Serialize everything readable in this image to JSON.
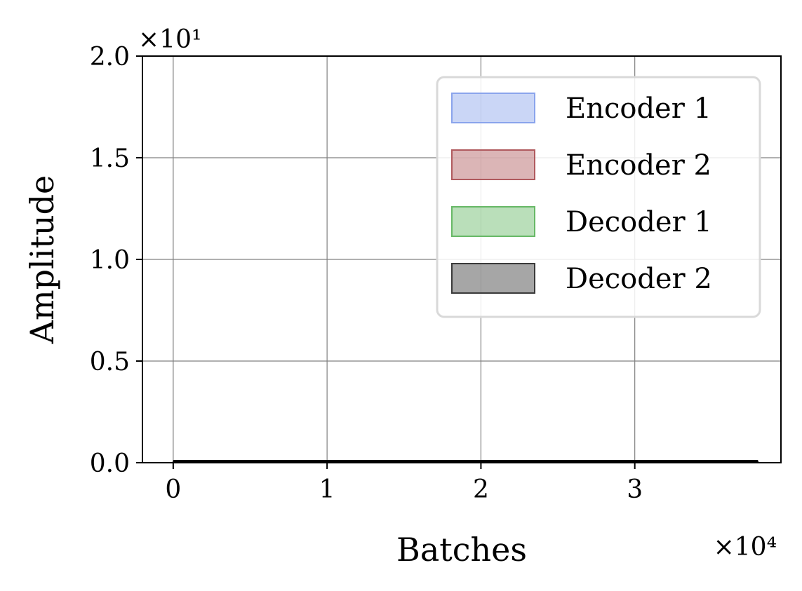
{
  "chart_data": {
    "type": "area",
    "title": "",
    "xlabel": "Batches",
    "ylabel": "Amplitude",
    "x_scale_label": "×10⁴",
    "y_scale_label": "×10¹",
    "xlim": [
      -0.2,
      3.95
    ],
    "ylim": [
      0.0,
      2.0
    ],
    "x_ticks": [
      0,
      1,
      2,
      3
    ],
    "x_tick_labels": [
      "0",
      "1",
      "2",
      "3"
    ],
    "y_ticks": [
      0.0,
      0.5,
      1.0,
      1.5,
      2.0
    ],
    "y_tick_labels": [
      "0.0",
      "0.5",
      "1.0",
      "1.5",
      "2.0"
    ],
    "grid": true,
    "legend_position": "top-right",
    "series": [
      {
        "name": "Encoder 1",
        "color": "#8aa4ec",
        "x": [
          0,
          0.5,
          1,
          1.5,
          2,
          2.5,
          3,
          3.5,
          3.8
        ],
        "values": [
          0.002,
          0.003,
          0.003,
          0.004,
          0.004,
          0.005,
          0.005,
          0.005,
          0.005
        ]
      },
      {
        "name": "Encoder 2",
        "color": "#b05a5e",
        "x": [
          0,
          0.5,
          1,
          1.5,
          2,
          2.5,
          3,
          3.5,
          3.8
        ],
        "values": [
          0.002,
          0.003,
          0.004,
          0.004,
          0.005,
          0.006,
          0.006,
          0.006,
          0.006
        ]
      },
      {
        "name": "Decoder 1",
        "color": "#67b866",
        "x": [
          0,
          0.5,
          1,
          1.5,
          2,
          2.5,
          3,
          3.5,
          3.8
        ],
        "values": [
          0.002,
          0.002,
          0.003,
          0.003,
          0.004,
          0.004,
          0.004,
          0.004,
          0.004
        ]
      },
      {
        "name": "Decoder 2",
        "color": "#3a3a3a",
        "x": [
          0,
          0.5,
          1,
          1.5,
          2,
          2.5,
          3,
          3.5,
          3.8
        ],
        "values": [
          0.003,
          0.004,
          0.004,
          0.005,
          0.005,
          0.006,
          0.006,
          0.006,
          0.006
        ]
      }
    ]
  }
}
